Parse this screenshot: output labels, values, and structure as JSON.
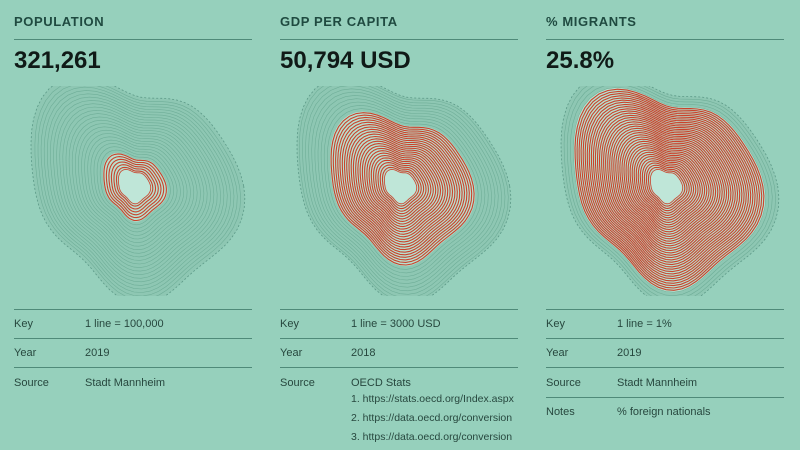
{
  "panels": [
    {
      "title": "POPULATION",
      "value": "321,261",
      "key": {
        "label": "Key",
        "value": "1 line = 100,000"
      },
      "year": {
        "label": "Year",
        "value": "2019"
      },
      "source": {
        "label": "Source",
        "value": "Stadt Mannheim"
      }
    },
    {
      "title": "GDP PER CAPITA",
      "value": "50,794 USD",
      "key": {
        "label": "Key",
        "value": "1 line = 3000 USD"
      },
      "year": {
        "label": "Year",
        "value": "2018"
      },
      "source": {
        "label": "Source",
        "value": "OECD Stats",
        "links": [
          "1. https://stats.oecd.org/Index.aspx",
          "2. https://data.oecd.org/conversion",
          "3. https://data.oecd.org/conversion"
        ]
      }
    },
    {
      "title": "% MIGRANTS",
      "value": "25.8%",
      "key": {
        "label": "Key",
        "value": "1 line = 1%"
      },
      "year": {
        "label": "Year",
        "value": "2019"
      },
      "source": {
        "label": "Source",
        "value": "Stadt Mannheim"
      },
      "notes": {
        "label": "Notes",
        "value": "% foreign nationals"
      }
    }
  ],
  "colors": {
    "background": "#96d0bc",
    "contour_red": "#c9432c",
    "contour_faint": "#6fae98",
    "city_core": "#bfe6d8"
  }
}
